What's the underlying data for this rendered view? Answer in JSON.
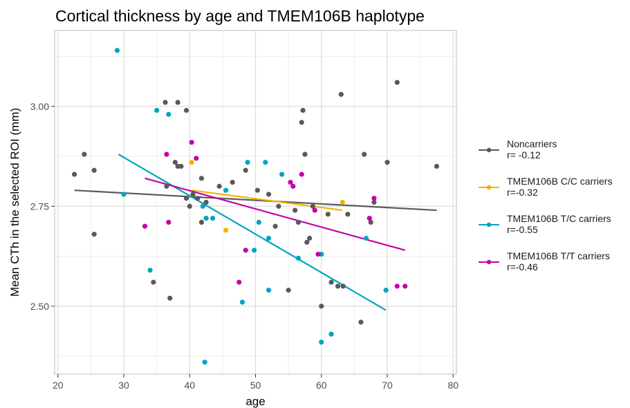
{
  "chart_data": {
    "type": "scatter",
    "title": "Cortical thickness by age and TMEM106B haplotype",
    "xlabel": "age",
    "ylabel": "Mean CTh in the selected ROI (mm)",
    "xlim": [
      19.5,
      80.5
    ],
    "ylim": [
      2.33,
      3.19
    ],
    "x_ticks": [
      20,
      30,
      40,
      50,
      60,
      70,
      80
    ],
    "y_ticks": [
      2.5,
      2.75,
      3.0
    ],
    "y_tick_labels": [
      "2.50",
      "2.75",
      "3.00"
    ],
    "grid": true,
    "legend_position": "right",
    "series": [
      {
        "name": "Noncarriers",
        "stat": "r= -0.12",
        "color": "#595959",
        "points": [
          [
            22.5,
            2.83
          ],
          [
            24,
            2.88
          ],
          [
            25.5,
            2.84
          ],
          [
            25.5,
            2.68
          ],
          [
            34.5,
            2.56
          ],
          [
            36.3,
            3.01
          ],
          [
            36.5,
            2.8
          ],
          [
            37,
            2.52
          ],
          [
            37.8,
            2.86
          ],
          [
            38.2,
            2.85
          ],
          [
            38.2,
            3.01
          ],
          [
            38.7,
            2.85
          ],
          [
            39.5,
            2.99
          ],
          [
            39.5,
            2.77
          ],
          [
            40,
            2.75
          ],
          [
            40.5,
            2.78
          ],
          [
            41.2,
            2.77
          ],
          [
            41.8,
            2.82
          ],
          [
            41.8,
            2.71
          ],
          [
            42.5,
            2.76
          ],
          [
            44.5,
            2.8
          ],
          [
            46.5,
            2.81
          ],
          [
            48.5,
            2.84
          ],
          [
            50.3,
            2.79
          ],
          [
            52,
            2.78
          ],
          [
            53,
            2.7
          ],
          [
            53.5,
            2.75
          ],
          [
            55,
            2.54
          ],
          [
            56,
            2.74
          ],
          [
            56.5,
            2.71
          ],
          [
            57,
            2.96
          ],
          [
            57.2,
            2.99
          ],
          [
            57.5,
            2.88
          ],
          [
            57.8,
            2.66
          ],
          [
            58.2,
            2.67
          ],
          [
            58.7,
            2.75
          ],
          [
            60,
            2.5
          ],
          [
            61,
            2.73
          ],
          [
            61.5,
            2.56
          ],
          [
            62.5,
            2.55
          ],
          [
            63,
            3.03
          ],
          [
            63.3,
            2.55
          ],
          [
            64,
            2.73
          ],
          [
            66,
            2.46
          ],
          [
            66.5,
            2.88
          ],
          [
            67.5,
            2.71
          ],
          [
            68,
            2.76
          ],
          [
            70,
            2.86
          ],
          [
            71.5,
            3.06
          ],
          [
            77.5,
            2.85
          ]
        ],
        "fit": [
          [
            22.5,
            2.79
          ],
          [
            77.5,
            2.74
          ]
        ]
      },
      {
        "name": "TMEM106B C/C carriers",
        "stat": "r=-0.32",
        "color": "#f0b400",
        "points": [
          [
            40.3,
            2.86
          ],
          [
            45.5,
            2.69
          ],
          [
            63.2,
            2.76
          ]
        ],
        "fit": [
          [
            40.3,
            2.79
          ],
          [
            63.2,
            2.74
          ]
        ]
      },
      {
        "name": "TMEM106B T/C carriers",
        "stat": "r=-0.55",
        "color": "#00a3c2",
        "points": [
          [
            29,
            3.14
          ],
          [
            30,
            2.78
          ],
          [
            34,
            2.59
          ],
          [
            35,
            2.99
          ],
          [
            36.8,
            2.98
          ],
          [
            42,
            2.75
          ],
          [
            42.3,
            2.36
          ],
          [
            42.5,
            2.72
          ],
          [
            43.5,
            2.72
          ],
          [
            45.5,
            2.79
          ],
          [
            48,
            2.51
          ],
          [
            48.8,
            2.86
          ],
          [
            49.8,
            2.64
          ],
          [
            50.5,
            2.71
          ],
          [
            51.5,
            2.86
          ],
          [
            52,
            2.67
          ],
          [
            52,
            2.54
          ],
          [
            54,
            2.83
          ],
          [
            56.5,
            2.62
          ],
          [
            60,
            2.63
          ],
          [
            60,
            2.41
          ],
          [
            61.5,
            2.43
          ],
          [
            66.8,
            2.67
          ],
          [
            69.8,
            2.54
          ]
        ],
        "fit": [
          [
            29.2,
            2.88
          ],
          [
            69.8,
            2.49
          ]
        ]
      },
      {
        "name": "TMEM106B T/T carriers",
        "stat": "r=-0.46",
        "color": "#c400a8",
        "points": [
          [
            33.2,
            2.7
          ],
          [
            36.5,
            2.88
          ],
          [
            36.8,
            2.71
          ],
          [
            40.3,
            2.91
          ],
          [
            41,
            2.87
          ],
          [
            47.5,
            2.56
          ],
          [
            48.5,
            2.64
          ],
          [
            55.3,
            2.81
          ],
          [
            55.7,
            2.8
          ],
          [
            57,
            2.83
          ],
          [
            59,
            2.74
          ],
          [
            59.5,
            2.63
          ],
          [
            67.3,
            2.72
          ],
          [
            68,
            2.77
          ],
          [
            71.5,
            2.55
          ],
          [
            72.7,
            2.55
          ]
        ],
        "fit": [
          [
            33.2,
            2.82
          ],
          [
            72.7,
            2.64
          ]
        ]
      }
    ]
  }
}
